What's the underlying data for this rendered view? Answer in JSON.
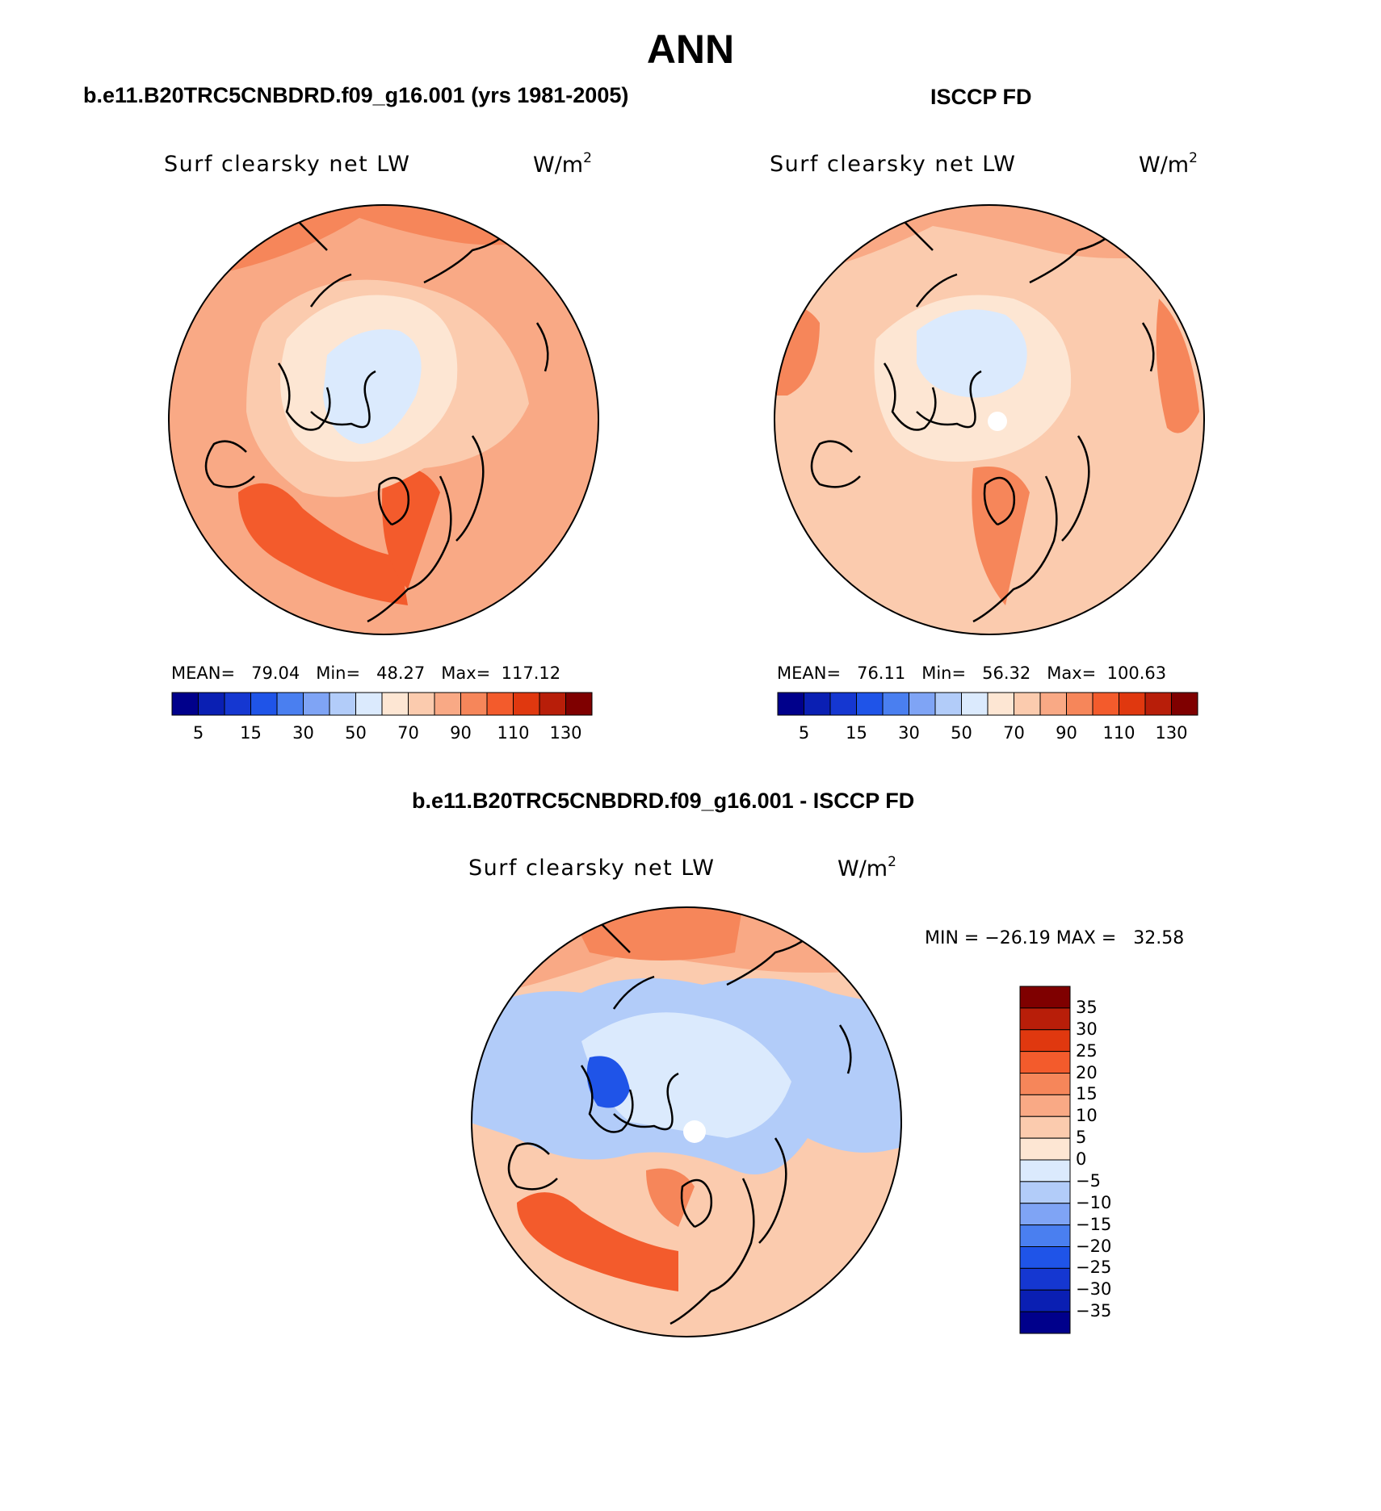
{
  "page": {
    "title": "ANN"
  },
  "panels": [
    {
      "title": "b.e11.B20TRC5CNBDRD.f09_g16.001 (yrs 1981-2005)",
      "variable": "Surf clearsky net LW",
      "units_base": "W/m",
      "units_exp": "2",
      "stats_text": "MEAN=   79.04   Min=   48.27   Max=  117.12"
    },
    {
      "title": "ISCCP FD",
      "variable": "Surf clearsky net LW",
      "units_base": "W/m",
      "units_exp": "2",
      "stats_text": "MEAN=   76.11   Min=   56.32   Max=  100.63"
    },
    {
      "title": "b.e11.B20TRC5CNBDRD.f09_g16.001 - ISCCP FD",
      "variable": "Surf clearsky net LW",
      "units_base": "W/m",
      "units_exp": "2",
      "stats_text": "MIN = −26.19 MAX =   32.58"
    }
  ],
  "colorbar_abs": {
    "colors": [
      "#00008b",
      "#0a1fb3",
      "#1537d1",
      "#1f54e8",
      "#4a7ff0",
      "#7fa4f5",
      "#b2ccf9",
      "#dbeafd",
      "#fde6d3",
      "#fbcbae",
      "#f9a985",
      "#f6865a",
      "#f35b2c",
      "#e0380f",
      "#b81e09",
      "#7f0000"
    ],
    "labels": [
      "5",
      "15",
      "30",
      "50",
      "70",
      "90",
      "110",
      "130"
    ]
  },
  "colorbar_diff": {
    "colors": [
      "#00008b",
      "#0a1fb3",
      "#1537d1",
      "#1f54e8",
      "#4a7ff0",
      "#7fa4f5",
      "#b2ccf9",
      "#dbeafd",
      "#fde6d3",
      "#fbcbae",
      "#f9a985",
      "#f6865a",
      "#f35b2c",
      "#e0380f",
      "#b81e09",
      "#7f0000"
    ],
    "labels": [
      "35",
      "30",
      "25",
      "20",
      "15",
      "10",
      "5",
      "0",
      "−5",
      "−10",
      "−15",
      "−20",
      "−25",
      "−30",
      "−35"
    ]
  },
  "map_fills": {
    "left": {
      "background": "#f9a985",
      "high": "#f35b2c",
      "mid": "#fbcbae",
      "low": "#dbeafd",
      "pale": "#fde6d3"
    },
    "right": {
      "background": "#fbcbae",
      "high": "#f6865a",
      "mid": "#f9a985",
      "low": "#dbeafd",
      "pale": "#fde6d3"
    },
    "diff": {
      "background": "#fbcbae",
      "high": "#f35b2c",
      "mid": "#f9a985",
      "low": "#b2ccf9",
      "pale": "#dbeafd"
    }
  }
}
